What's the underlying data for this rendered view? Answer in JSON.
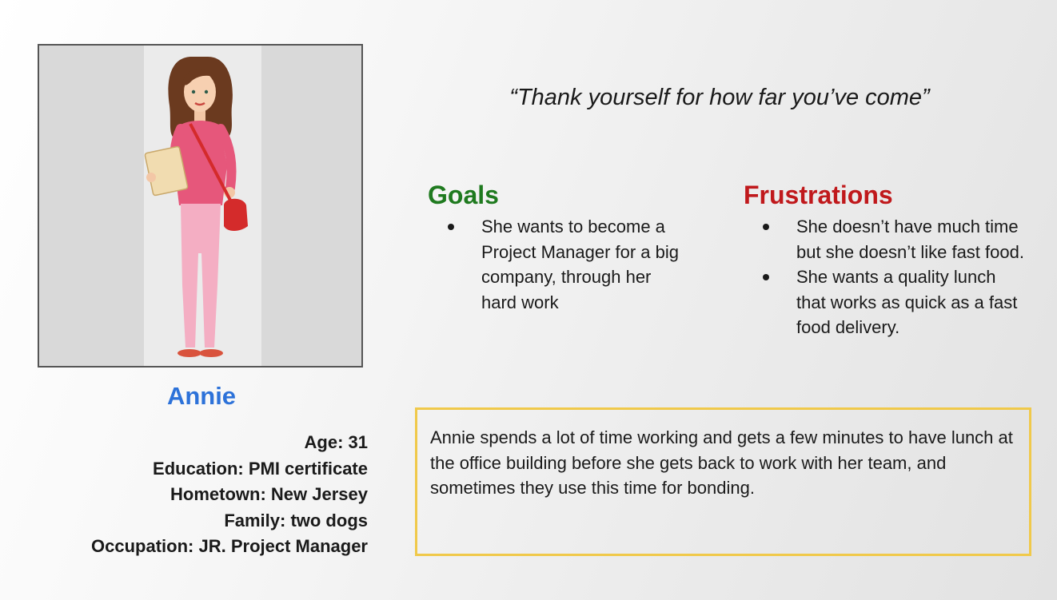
{
  "persona": {
    "name": "Annie",
    "photo_icon": "woman-illustration",
    "details": [
      "Age: 31",
      "Education: PMI certificate",
      "Hometown: New Jersey",
      "Family: two dogs",
      "Occupation: JR. Project Manager"
    ]
  },
  "quote": "“Thank yourself for how far you’ve come”",
  "goals": {
    "title": "Goals",
    "items": [
      "She wants to become a Project Manager for a big company, through her hard work"
    ]
  },
  "frustrations": {
    "title": "Frustrations",
    "items": [
      "She doesn’t have much time but she doesn’t like fast food.",
      "She wants a quality lunch that works as quick as a fast food delivery."
    ]
  },
  "bio": "Annie spends a lot of time working and gets a few minutes to have lunch at the office building before she gets back to work with her team, and sometimes they use this time for bonding.",
  "colors": {
    "name": "#2d72d9",
    "goals": "#1f7a1f",
    "frustrations": "#c0191c",
    "bio_border": "#f0c94a"
  }
}
